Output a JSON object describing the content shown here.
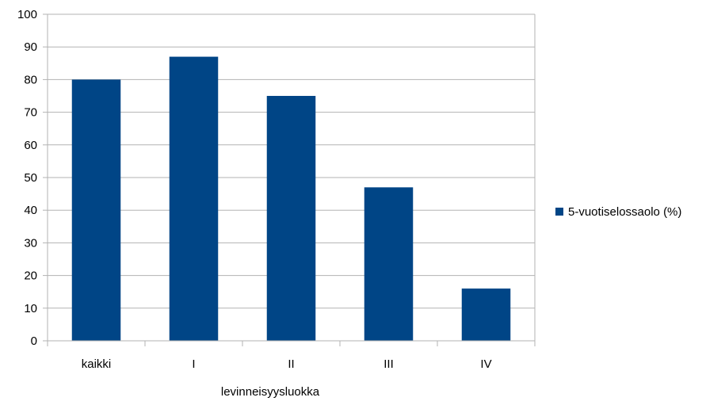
{
  "chart_data": {
    "type": "bar",
    "categories": [
      "kaikki",
      "I",
      "II",
      "III",
      "IV"
    ],
    "series": [
      {
        "name": "5-vuotiselossaolo (%)",
        "values": [
          80,
          87,
          75,
          47,
          16
        ],
        "color": "#004586"
      }
    ],
    "xlabel": "levinneisyysluokka",
    "ylabel": "",
    "ylim": [
      0,
      100
    ],
    "yticks": [
      0,
      10,
      20,
      30,
      40,
      50,
      60,
      70,
      80,
      90,
      100
    ],
    "grid": true,
    "legend_position": "right"
  }
}
